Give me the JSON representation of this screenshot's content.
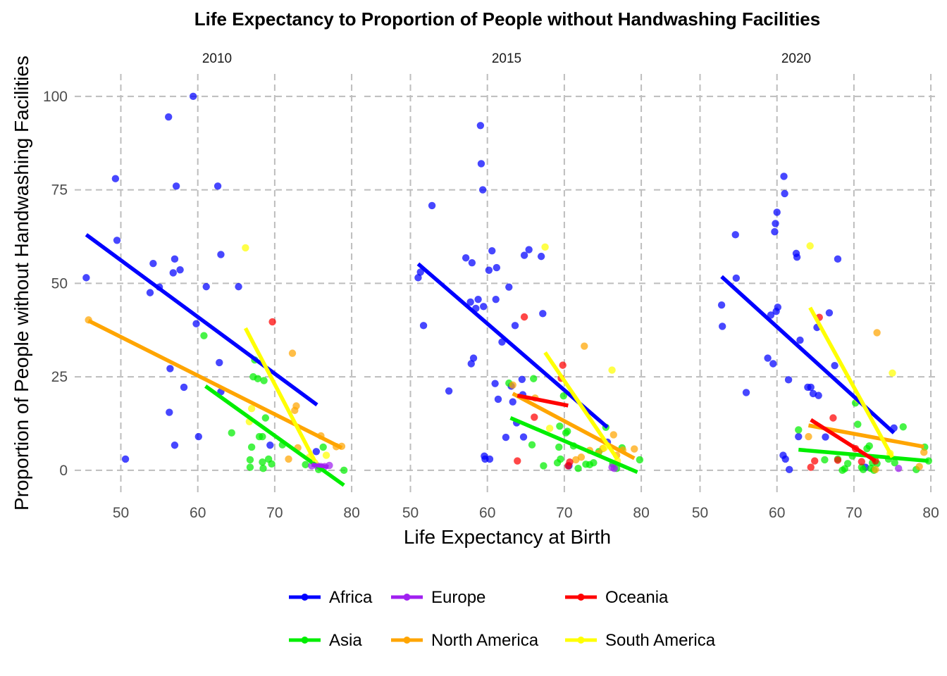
{
  "chart_data": {
    "type": "scatter",
    "title": "Life Expectancy to Proportion of People without Handwashing Facilities",
    "xlabel": "Life Expectancy at Birth",
    "ylabel": "Proportion of People without Handwashing Facilities",
    "xlim": [
      44,
      81
    ],
    "ylim": [
      -7,
      106
    ],
    "x_ticks": [
      50,
      60,
      70,
      80
    ],
    "y_ticks": [
      0,
      25,
      50,
      75,
      100
    ],
    "grid": true,
    "legend_position": "bottom",
    "colors": {
      "Africa": "#0000ff",
      "Asia": "#00ee00",
      "Europe": "#a020f0",
      "North America": "#ffa500",
      "Oceania": "#ff0000",
      "South America": "#ffff00"
    },
    "legend": [
      "Africa",
      "Europe",
      "Oceania",
      "Asia",
      "North America",
      "South America"
    ],
    "panels": [
      {
        "label": "2010",
        "points": {
          "Africa": [
            [
              45.5,
              51.5
            ],
            [
              49.3,
              78
            ],
            [
              49.5,
              61.5
            ],
            [
              50.6,
              3
            ],
            [
              53.8,
              47.5
            ],
            [
              54.2,
              55.3
            ],
            [
              55,
              49
            ],
            [
              56.2,
              94.5
            ],
            [
              56.4,
              27.2
            ],
            [
              56.3,
              15.5
            ],
            [
              56.8,
              52.8
            ],
            [
              57,
              56.5
            ],
            [
              57,
              6.7
            ],
            [
              57.2,
              76
            ],
            [
              57.7,
              53.6
            ],
            [
              58.2,
              22.2
            ],
            [
              59.4,
              100
            ],
            [
              59.8,
              39.2
            ],
            [
              60.1,
              9
            ],
            [
              61.1,
              49.1
            ],
            [
              62.6,
              76
            ],
            [
              62.8,
              28.8
            ],
            [
              63,
              57.7
            ],
            [
              63,
              21
            ],
            [
              65.3,
              49.1
            ],
            [
              69.4,
              6.7
            ],
            [
              75.4,
              5
            ]
          ],
          "Asia": [
            [
              60.8,
              36
            ],
            [
              64.4,
              10
            ],
            [
              66.8,
              0.8
            ],
            [
              66.8,
              2.8
            ],
            [
              67,
              6.2
            ],
            [
              67.2,
              25
            ],
            [
              67.4,
              29.5
            ],
            [
              67.8,
              24.5
            ],
            [
              68,
              9
            ],
            [
              68.4,
              9
            ],
            [
              68.4,
              2.2
            ],
            [
              68.5,
              0.5
            ],
            [
              68.6,
              24
            ],
            [
              68.8,
              14
            ],
            [
              69.2,
              3
            ],
            [
              69.6,
              1.7
            ],
            [
              71,
              6.8
            ],
            [
              74,
              1.5
            ],
            [
              75.7,
              0.2
            ],
            [
              76.3,
              6.2
            ],
            [
              79,
              0
            ]
          ],
          "Europe": [
            [
              74.8,
              1.2
            ],
            [
              75.5,
              1.2
            ],
            [
              76,
              1
            ],
            [
              76.5,
              1
            ],
            [
              77.1,
              1.3
            ]
          ],
          "North America": [
            [
              45.8,
              40.2
            ],
            [
              71.8,
              3
            ],
            [
              72.3,
              31.3
            ],
            [
              72.6,
              16
            ],
            [
              72.8,
              17.2
            ],
            [
              73,
              6
            ],
            [
              76,
              9.2
            ],
            [
              78,
              6.3
            ],
            [
              78.7,
              6.4
            ]
          ],
          "Oceania": [
            [
              69.7,
              39.7
            ]
          ],
          "South America": [
            [
              66.2,
              59.5
            ],
            [
              66.7,
              13
            ],
            [
              67,
              16.5
            ],
            [
              74.5,
              3.5
            ],
            [
              75.2,
              2
            ],
            [
              76.7,
              4
            ]
          ]
        },
        "lines": {
          "Africa": [
            [
              45.5,
              63
            ],
            [
              75.5,
              17.5
            ]
          ],
          "Asia": [
            [
              61,
              22.5
            ],
            [
              79,
              -4
            ]
          ],
          "Europe": [
            [
              74.8,
              1.5
            ],
            [
              77,
              0.9
            ]
          ],
          "North America": [
            [
              45.8,
              40
            ],
            [
              78.7,
              6
            ]
          ],
          "South America": [
            [
              66.2,
              38
            ],
            [
              75.2,
              2.5
            ]
          ]
        }
      },
      {
        "label": "2015",
        "points": {
          "Africa": [
            [
              51,
              51.5
            ],
            [
              51.3,
              53
            ],
            [
              51.7,
              38.7
            ],
            [
              52.8,
              70.8
            ],
            [
              55,
              21.2
            ],
            [
              57.2,
              56.8
            ],
            [
              57.8,
              45
            ],
            [
              57.9,
              28.5
            ],
            [
              58,
              55.5
            ],
            [
              58.2,
              30
            ],
            [
              58.5,
              43.3
            ],
            [
              58.8,
              45.7
            ],
            [
              59.1,
              92.2
            ],
            [
              59.2,
              82
            ],
            [
              59.4,
              75
            ],
            [
              59.5,
              43.8
            ],
            [
              59.6,
              3.8
            ],
            [
              59.7,
              3
            ],
            [
              60.2,
              53.5
            ],
            [
              60.3,
              3
            ],
            [
              60.6,
              58.7
            ],
            [
              61,
              23.2
            ],
            [
              61.1,
              45.7
            ],
            [
              61.2,
              54.2
            ],
            [
              61.4,
              19
            ],
            [
              61.9,
              34.3
            ],
            [
              62.4,
              8.8
            ],
            [
              62.8,
              49
            ],
            [
              63.1,
              22.5
            ],
            [
              63.3,
              18.3
            ],
            [
              63.6,
              38.7
            ],
            [
              63.8,
              12.7
            ],
            [
              64.5,
              24.3
            ],
            [
              64.6,
              20.2
            ],
            [
              64.7,
              8.9
            ],
            [
              64.8,
              57.5
            ],
            [
              65.4,
              59
            ],
            [
              67,
              57.2
            ],
            [
              67.2,
              41.9
            ],
            [
              70.6,
              1.2
            ],
            [
              75.6,
              7.5
            ]
          ],
          "Asia": [
            [
              62.8,
              23.3
            ],
            [
              65.8,
              6.8
            ],
            [
              66,
              24.5
            ],
            [
              67.3,
              1.2
            ],
            [
              69.1,
              2
            ],
            [
              69.3,
              6.2
            ],
            [
              69.4,
              11.8
            ],
            [
              69.5,
              3
            ],
            [
              69.9,
              19.9
            ],
            [
              70.2,
              10
            ],
            [
              70.4,
              10.4
            ],
            [
              71.2,
              6.5
            ],
            [
              71.8,
              0.5
            ],
            [
              72.8,
              1.6
            ],
            [
              73.3,
              1.5
            ],
            [
              73.8,
              2
            ],
            [
              74.5,
              5
            ],
            [
              75.4,
              11.5
            ],
            [
              76.3,
              1.7
            ],
            [
              76.8,
              0.5
            ],
            [
              77.5,
              6
            ],
            [
              79.8,
              2.8
            ]
          ],
          "Europe": [
            [
              76.2,
              0.8
            ],
            [
              76.5,
              0.5
            ]
          ],
          "North America": [
            [
              63.3,
              22.8
            ],
            [
              66.2,
              19.3
            ],
            [
              71.5,
              2.8
            ],
            [
              72.2,
              3.5
            ],
            [
              72.6,
              33.2
            ],
            [
              73.3,
              5.3
            ],
            [
              74.4,
              4.5
            ],
            [
              75,
              5.8
            ],
            [
              76.4,
              9.5
            ],
            [
              76.8,
              4
            ],
            [
              77.6,
              5.4
            ],
            [
              79.1,
              5.7
            ]
          ],
          "Oceania": [
            [
              63.9,
              2.5
            ],
            [
              64.8,
              41
            ],
            [
              66.1,
              14.2
            ],
            [
              69.8,
              28.1
            ],
            [
              69.6,
              24.6
            ],
            [
              70.5,
              1.2
            ],
            [
              70.7,
              2.2
            ]
          ],
          "South America": [
            [
              67.5,
              59.7
            ],
            [
              68.1,
              11.2
            ],
            [
              75.2,
              6
            ],
            [
              76.2,
              26.8
            ],
            [
              76.9,
              2.5
            ]
          ]
        },
        "lines": {
          "Africa": [
            [
              51,
              55.2
            ],
            [
              75.6,
              11.5
            ]
          ],
          "Asia": [
            [
              63,
              14
            ],
            [
              79.5,
              -0.5
            ]
          ],
          "North America": [
            [
              63.3,
              20.5
            ],
            [
              79.1,
              3.2
            ]
          ],
          "Oceania": [
            [
              63.9,
              20
            ],
            [
              70.5,
              17.3
            ]
          ],
          "South America": [
            [
              67.5,
              31.5
            ],
            [
              76.9,
              3
            ]
          ]
        }
      },
      {
        "label": "2020",
        "points": {
          "Africa": [
            [
              52.8,
              44.2
            ],
            [
              52.9,
              38.5
            ],
            [
              54.6,
              63
            ],
            [
              54.7,
              51.4
            ],
            [
              56,
              20.8
            ],
            [
              58.8,
              30
            ],
            [
              59.2,
              41.5
            ],
            [
              59.5,
              28.5
            ],
            [
              59.7,
              63.8
            ],
            [
              59.8,
              66
            ],
            [
              59.9,
              42.5
            ],
            [
              60,
              69
            ],
            [
              60.1,
              43.6
            ],
            [
              60.8,
              4
            ],
            [
              60.9,
              78.6
            ],
            [
              61,
              74
            ],
            [
              61.1,
              3
            ],
            [
              61.5,
              24.2
            ],
            [
              61.6,
              0.2
            ],
            [
              62.5,
              58
            ],
            [
              62.6,
              57
            ],
            [
              62.8,
              9
            ],
            [
              63,
              34.8
            ],
            [
              64,
              22.2
            ],
            [
              64.4,
              22.2
            ],
            [
              64.7,
              20.5
            ],
            [
              65.2,
              38.2
            ],
            [
              65.4,
              20
            ],
            [
              66.3,
              8.9
            ],
            [
              66.8,
              42.1
            ],
            [
              67.5,
              28
            ],
            [
              67.9,
              56.5
            ],
            [
              71.5,
              0.8
            ],
            [
              75.2,
              11.3
            ]
          ],
          "Asia": [
            [
              62.8,
              10.8
            ],
            [
              66.2,
              2.8
            ],
            [
              67.9,
              3
            ],
            [
              68.5,
              0
            ],
            [
              68.8,
              0.4
            ],
            [
              69.2,
              1.8
            ],
            [
              69.8,
              3.8
            ],
            [
              70.2,
              18
            ],
            [
              70.5,
              12.3
            ],
            [
              71,
              0.8
            ],
            [
              71.2,
              0.2
            ],
            [
              71.7,
              5.8
            ],
            [
              72,
              6.5
            ],
            [
              72.2,
              0.5
            ],
            [
              72.4,
              2
            ],
            [
              72.6,
              0
            ],
            [
              73,
              1.8
            ],
            [
              74.5,
              3
            ],
            [
              75.3,
              2
            ],
            [
              76.4,
              11.6
            ],
            [
              78.1,
              0.2
            ],
            [
              79.2,
              6.2
            ],
            [
              79.7,
              2.5
            ]
          ],
          "Europe": [
            [
              75.8,
              0.5
            ]
          ],
          "North America": [
            [
              64.1,
              9
            ],
            [
              72.8,
              0.2
            ],
            [
              73,
              36.8
            ],
            [
              78.5,
              1
            ],
            [
              79.1,
              4.8
            ]
          ],
          "Oceania": [
            [
              64.4,
              0.8
            ],
            [
              64.9,
              2.5
            ],
            [
              65.5,
              40.9
            ],
            [
              67.3,
              14
            ],
            [
              67.9,
              2.7
            ],
            [
              70.2,
              5.8
            ],
            [
              71,
              2.3
            ],
            [
              72.8,
              2.5
            ]
          ],
          "South America": [
            [
              64.3,
              60
            ],
            [
              70.5,
              19
            ],
            [
              74.7,
              4.5
            ],
            [
              75,
              26
            ]
          ]
        },
        "lines": {
          "Africa": [
            [
              52.8,
              51.8
            ],
            [
              75.2,
              10
            ]
          ],
          "Asia": [
            [
              62.8,
              5.5
            ],
            [
              79.7,
              2.5
            ]
          ],
          "North America": [
            [
              64.1,
              12
            ],
            [
              79.1,
              6.3
            ]
          ],
          "Oceania": [
            [
              64.4,
              13.5
            ],
            [
              72.8,
              2.5
            ]
          ],
          "South America": [
            [
              64.3,
              43.5
            ],
            [
              75,
              3.5
            ]
          ]
        }
      }
    ]
  }
}
